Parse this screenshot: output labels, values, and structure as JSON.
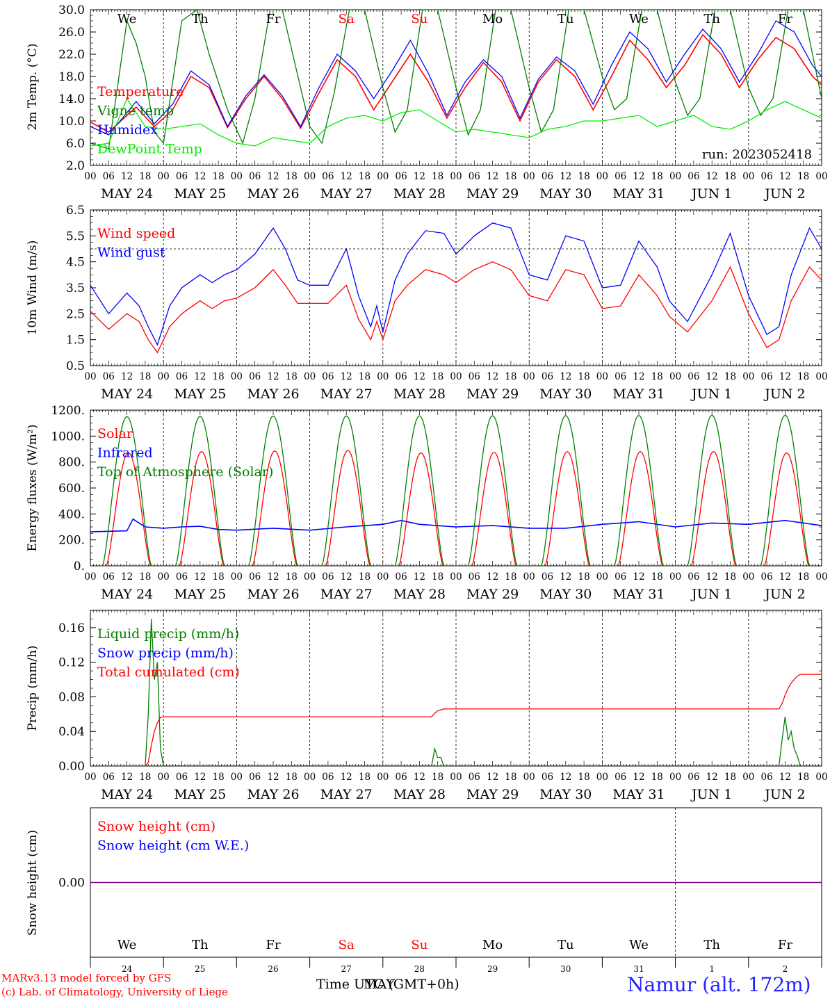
{
  "page": {
    "credit_line1": "MARv3.13 model forced by GFS",
    "credit_line2": "(c) Lab. of Climatology, University of Liege",
    "xlabel": "Time UTC (GMT+0h)",
    "month_overlay": "MAY",
    "station": "Namur (alt. 172m)",
    "run": "run: 2023052418"
  },
  "colors": {
    "red": "#ff0000",
    "green": "#008000",
    "blue": "#0000ff",
    "lime": "#00ee00",
    "purple": "#800080",
    "weekend": "#ff0000"
  },
  "days": {
    "weekday_labels": [
      "We",
      "Th",
      "Fr",
      "Sa",
      "Su",
      "Mo",
      "Tu",
      "We",
      "Th",
      "Fr"
    ],
    "weekend_flags": [
      false,
      false,
      false,
      true,
      true,
      false,
      false,
      false,
      false,
      false
    ],
    "date_labels": [
      "MAY 24",
      "MAY 25",
      "MAY 26",
      "MAY 27",
      "MAY 28",
      "MAY 29",
      "MAY 30",
      "MAY 31",
      "JUN  1",
      "JUN  2"
    ],
    "day_numbers": [
      "24",
      "25",
      "26",
      "27",
      "28",
      "29",
      "30",
      "31",
      "1",
      "2"
    ],
    "hour_ticks": [
      "00",
      "06",
      "12",
      "18"
    ],
    "end_tick": "00"
  },
  "chart_data": [
    {
      "type": "line",
      "ylabel": "2m Temp. (°C)",
      "ylim": [
        2,
        30
      ],
      "yticks": [
        "2.0",
        "6.0",
        "10.0",
        "14.0",
        "18.0",
        "22.0",
        "26.0",
        "30.0"
      ],
      "x_unit": "hours since 2023-05-24 00 UTC",
      "series": [
        {
          "name": "Temperature",
          "color": "#ff0000",
          "x": [
            0,
            6,
            15,
            21,
            27,
            33,
            39,
            45,
            51,
            57,
            63,
            69,
            75,
            81,
            87,
            93,
            99,
            105,
            111,
            117,
            123,
            129,
            135,
            141,
            147,
            153,
            159,
            165,
            171,
            177,
            183,
            189,
            195,
            201,
            207,
            213,
            219,
            225,
            231,
            237,
            240
          ],
          "values": [
            9.8,
            8.0,
            12.5,
            9.0,
            12.0,
            18.0,
            16.0,
            8.8,
            14.0,
            18.0,
            14.0,
            8.7,
            15.0,
            21.0,
            18.0,
            12.0,
            17.0,
            22.0,
            17.0,
            10.5,
            16.0,
            20.5,
            17.0,
            10.0,
            17.0,
            21.0,
            18.0,
            12.0,
            18.0,
            24.5,
            21.0,
            16.0,
            20.0,
            25.5,
            22.0,
            16.0,
            21.0,
            25.0,
            23.0,
            18.0,
            16.5
          ]
        },
        {
          "name": "Vigne temp",
          "color": "#008000",
          "x": [
            0,
            6,
            12,
            15,
            18,
            21,
            24,
            30,
            35,
            39,
            45,
            50,
            54,
            59,
            63,
            69,
            72,
            76,
            80,
            85,
            90,
            96,
            100,
            104,
            109,
            114,
            120,
            124,
            128,
            133,
            138,
            144,
            148,
            152,
            157,
            162,
            168,
            172,
            176,
            181,
            186,
            192,
            196,
            200,
            205,
            210,
            216,
            220,
            224,
            229,
            234,
            240
          ],
          "values": [
            6.0,
            5.0,
            28.0,
            24.0,
            18.0,
            8.0,
            6.0,
            28.0,
            30.0,
            22.0,
            12.0,
            6.0,
            14.0,
            30.0,
            30.0,
            16.0,
            9.0,
            6.0,
            15.0,
            30.0,
            30.0,
            16.0,
            8.0,
            12.0,
            30.0,
            30.0,
            16.0,
            7.5,
            12.0,
            30.0,
            30.0,
            16.0,
            8.0,
            12.0,
            30.0,
            30.0,
            18.0,
            12.0,
            14.0,
            30.0,
            30.0,
            17.0,
            11.0,
            14.0,
            30.0,
            30.0,
            16.0,
            11.0,
            14.0,
            30.0,
            30.0,
            14.0
          ]
        },
        {
          "name": "Humidex",
          "color": "#0000ff",
          "x": [
            0,
            6,
            15,
            21,
            27,
            33,
            39,
            45,
            51,
            57,
            63,
            69,
            75,
            81,
            87,
            93,
            99,
            105,
            111,
            117,
            123,
            129,
            135,
            141,
            147,
            153,
            159,
            165,
            171,
            177,
            183,
            189,
            195,
            201,
            207,
            213,
            219,
            225,
            231,
            237,
            240
          ],
          "values": [
            9.0,
            7.5,
            13.5,
            9.5,
            13.0,
            19.0,
            16.5,
            9.0,
            14.5,
            18.3,
            14.5,
            9.0,
            16.0,
            22.0,
            19.0,
            14.0,
            19.0,
            24.5,
            18.5,
            11.0,
            17.0,
            21.0,
            18.0,
            10.5,
            17.5,
            21.5,
            19.0,
            13.0,
            20.0,
            26.0,
            23.0,
            17.0,
            22.0,
            26.5,
            23.0,
            17.0,
            22.0,
            28.0,
            26.0,
            20.0,
            18.0
          ]
        },
        {
          "name": "DewPoint Temp",
          "color": "#00ee00",
          "x": [
            0,
            6,
            12,
            18,
            24,
            30,
            36,
            42,
            48,
            54,
            60,
            66,
            72,
            78,
            84,
            90,
            96,
            102,
            108,
            114,
            120,
            126,
            132,
            138,
            144,
            150,
            156,
            162,
            168,
            174,
            180,
            186,
            192,
            198,
            204,
            210,
            216,
            222,
            228,
            234,
            240
          ],
          "values": [
            5.5,
            6.0,
            14.0,
            9.0,
            8.5,
            9.0,
            9.5,
            7.5,
            6.0,
            5.5,
            7.0,
            6.5,
            6.0,
            9.0,
            10.5,
            11.0,
            10.0,
            11.5,
            12.0,
            10.0,
            8.0,
            8.5,
            8.0,
            7.5,
            7.0,
            8.5,
            9.0,
            10.0,
            10.0,
            10.5,
            11.0,
            9.0,
            10.0,
            11.0,
            9.0,
            8.5,
            10.0,
            12.0,
            13.5,
            12.0,
            10.5
          ]
        }
      ]
    },
    {
      "type": "line",
      "ylabel": "10m Wind (m/s)",
      "ylim": [
        0.5,
        6.5
      ],
      "yticks": [
        "0.5",
        "1.5",
        "2.5",
        "3.5",
        "4.5",
        "5.5",
        "6.5"
      ],
      "reference_line": 5.0,
      "x_unit": "hours since 2023-05-24 00 UTC",
      "series": [
        {
          "name": "Wind speed",
          "color": "#ff0000",
          "x": [
            0,
            6,
            12,
            16,
            19,
            22,
            26,
            30,
            36,
            40,
            44,
            48,
            54,
            60,
            64,
            68,
            72,
            78,
            84,
            88,
            92,
            94,
            96,
            100,
            104,
            110,
            116,
            120,
            126,
            132,
            138,
            144,
            150,
            156,
            162,
            168,
            174,
            180,
            186,
            190,
            196,
            204,
            210,
            216,
            222,
            226,
            230,
            236,
            240
          ],
          "values": [
            2.6,
            1.9,
            2.5,
            2.2,
            1.5,
            1.0,
            2.0,
            2.5,
            3.0,
            2.7,
            3.0,
            3.1,
            3.5,
            4.2,
            3.6,
            2.9,
            2.9,
            2.9,
            3.6,
            2.3,
            1.5,
            2.2,
            1.5,
            3.0,
            3.6,
            4.2,
            4.0,
            3.7,
            4.2,
            4.5,
            4.2,
            3.2,
            3.0,
            4.2,
            4.0,
            2.7,
            2.8,
            4.0,
            3.2,
            2.4,
            1.8,
            3.0,
            4.3,
            2.5,
            1.2,
            1.5,
            3.0,
            4.3,
            3.8
          ]
        },
        {
          "name": "Wind gust",
          "color": "#0000ff",
          "x": [
            0,
            6,
            12,
            16,
            19,
            22,
            26,
            30,
            36,
            40,
            44,
            48,
            54,
            60,
            64,
            68,
            72,
            78,
            84,
            88,
            92,
            94,
            96,
            100,
            104,
            110,
            116,
            120,
            126,
            132,
            138,
            144,
            150,
            156,
            162,
            168,
            174,
            180,
            186,
            190,
            196,
            204,
            210,
            216,
            222,
            226,
            230,
            236,
            240
          ],
          "values": [
            3.6,
            2.5,
            3.3,
            2.8,
            2.0,
            1.3,
            2.8,
            3.5,
            4.0,
            3.7,
            4.0,
            4.2,
            4.8,
            5.8,
            5.0,
            3.8,
            3.6,
            3.6,
            5.0,
            3.2,
            2.0,
            2.8,
            1.8,
            3.8,
            4.8,
            5.7,
            5.6,
            4.8,
            5.5,
            6.0,
            5.8,
            4.0,
            3.8,
            5.5,
            5.3,
            3.5,
            3.6,
            5.3,
            4.3,
            3.0,
            2.2,
            4.0,
            5.6,
            3.2,
            1.7,
            2.0,
            4.0,
            5.8,
            5.0
          ]
        }
      ]
    },
    {
      "type": "line",
      "ylabel": "Energy fluxes (W/m²)",
      "ylim": [
        0,
        1200
      ],
      "yticks": [
        "0.",
        "200.",
        "400.",
        "600.",
        "800.",
        "1000.",
        "1200."
      ],
      "x_unit": "hours since 2023-05-24 00 UTC",
      "series": [
        {
          "name": "Solar",
          "color": "#ff0000",
          "peak_values": [
            870,
            880,
            885,
            890,
            870,
            875,
            880,
            880,
            880,
            870
          ],
          "peak_hour": 12.5,
          "day_length_hours": 14.5
        },
        {
          "name": "Infrared",
          "color": "#0000ff",
          "x": [
            0,
            12,
            14,
            18,
            24,
            30,
            36,
            42,
            48,
            60,
            72,
            84,
            96,
            102,
            108,
            120,
            132,
            144,
            156,
            168,
            180,
            192,
            204,
            216,
            228,
            240
          ],
          "values": [
            262,
            270,
            360,
            300,
            290,
            300,
            305,
            280,
            275,
            290,
            275,
            300,
            320,
            350,
            320,
            300,
            310,
            290,
            290,
            320,
            340,
            300,
            330,
            320,
            350,
            310
          ]
        },
        {
          "name": "Top of Atmosphere (Solar)",
          "color": "#008000",
          "peak_values": [
            1150,
            1152,
            1154,
            1155,
            1156,
            1157,
            1158,
            1159,
            1160,
            1160
          ],
          "peak_hour": 12,
          "day_length_hours": 16
        }
      ]
    },
    {
      "type": "line",
      "ylabel": "Precip (mm/h)",
      "ylim": [
        0,
        0.18
      ],
      "yticks": [
        "0.00",
        "0.04",
        "0.08",
        "0.12",
        "0.16"
      ],
      "x_unit": "hours since 2023-05-24 00 UTC",
      "series": [
        {
          "name": "Liquid precip (mm/h)",
          "color": "#008000",
          "x": [
            0,
            18,
            19,
            20,
            21,
            22,
            23,
            24,
            112,
            113,
            114,
            115,
            116,
            226,
            227,
            228,
            229,
            230,
            231,
            232,
            233,
            240
          ],
          "values": [
            0,
            0,
            0.06,
            0.17,
            0.1,
            0.12,
            0.02,
            0,
            0,
            0.02,
            0.01,
            0.01,
            0,
            0,
            0.03,
            0.057,
            0.03,
            0.04,
            0.02,
            0.012,
            0,
            0
          ]
        },
        {
          "name": "Snow precip (mm/h)",
          "color": "#0000ff",
          "x": [
            0,
            240
          ],
          "values": [
            0,
            0
          ]
        },
        {
          "name": "Total cumulated (cm)",
          "color": "#ff0000",
          "x": [
            0,
            18,
            19,
            20,
            21,
            22,
            23,
            24,
            112,
            113,
            114,
            115,
            116,
            226,
            227,
            228,
            229,
            230,
            231,
            232,
            233,
            240
          ],
          "values": [
            0,
            0,
            0.004,
            0.024,
            0.04,
            0.05,
            0.056,
            0.057,
            0.057,
            0.061,
            0.064,
            0.065,
            0.066,
            0.066,
            0.072,
            0.082,
            0.09,
            0.096,
            0.1,
            0.104,
            0.106,
            0.106
          ]
        }
      ]
    },
    {
      "type": "line",
      "ylabel": "Snow height (cm)",
      "yticks": [
        "0.00"
      ],
      "x_unit": "hours since 2023-05-24 00 UTC",
      "series": [
        {
          "name": "Snow height (cm)",
          "color": "#ff0000",
          "x": [
            0,
            240
          ],
          "values": [
            0,
            0
          ]
        },
        {
          "name": "Snow height (cm W.E.)",
          "color": "#0000ff",
          "x": [
            0,
            240
          ],
          "values": [
            0,
            0
          ]
        }
      ]
    }
  ]
}
